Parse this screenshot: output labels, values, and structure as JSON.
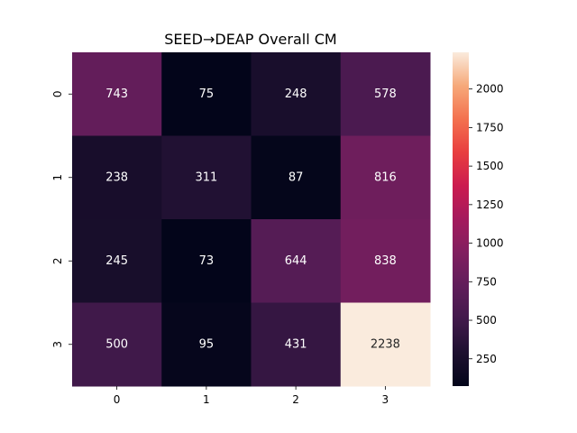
{
  "chart_data": {
    "type": "heatmap",
    "title": "SEED→DEAP Overall CM",
    "xlabel": "",
    "ylabel": "",
    "x_categories": [
      "0",
      "1",
      "2",
      "3"
    ],
    "y_categories": [
      "0",
      "1",
      "2",
      "3"
    ],
    "values": [
      [
        743,
        75,
        248,
        578
      ],
      [
        238,
        311,
        87,
        816
      ],
      [
        245,
        73,
        644,
        838
      ],
      [
        500,
        95,
        431,
        2238
      ]
    ],
    "colorbar": {
      "min": 73,
      "max": 2238,
      "ticks": [
        250,
        500,
        750,
        1000,
        1250,
        1500,
        1750,
        2000
      ],
      "colormap": "rocket"
    },
    "colors": {
      "low_text": "#ffffff",
      "high_text": "#262626"
    }
  }
}
